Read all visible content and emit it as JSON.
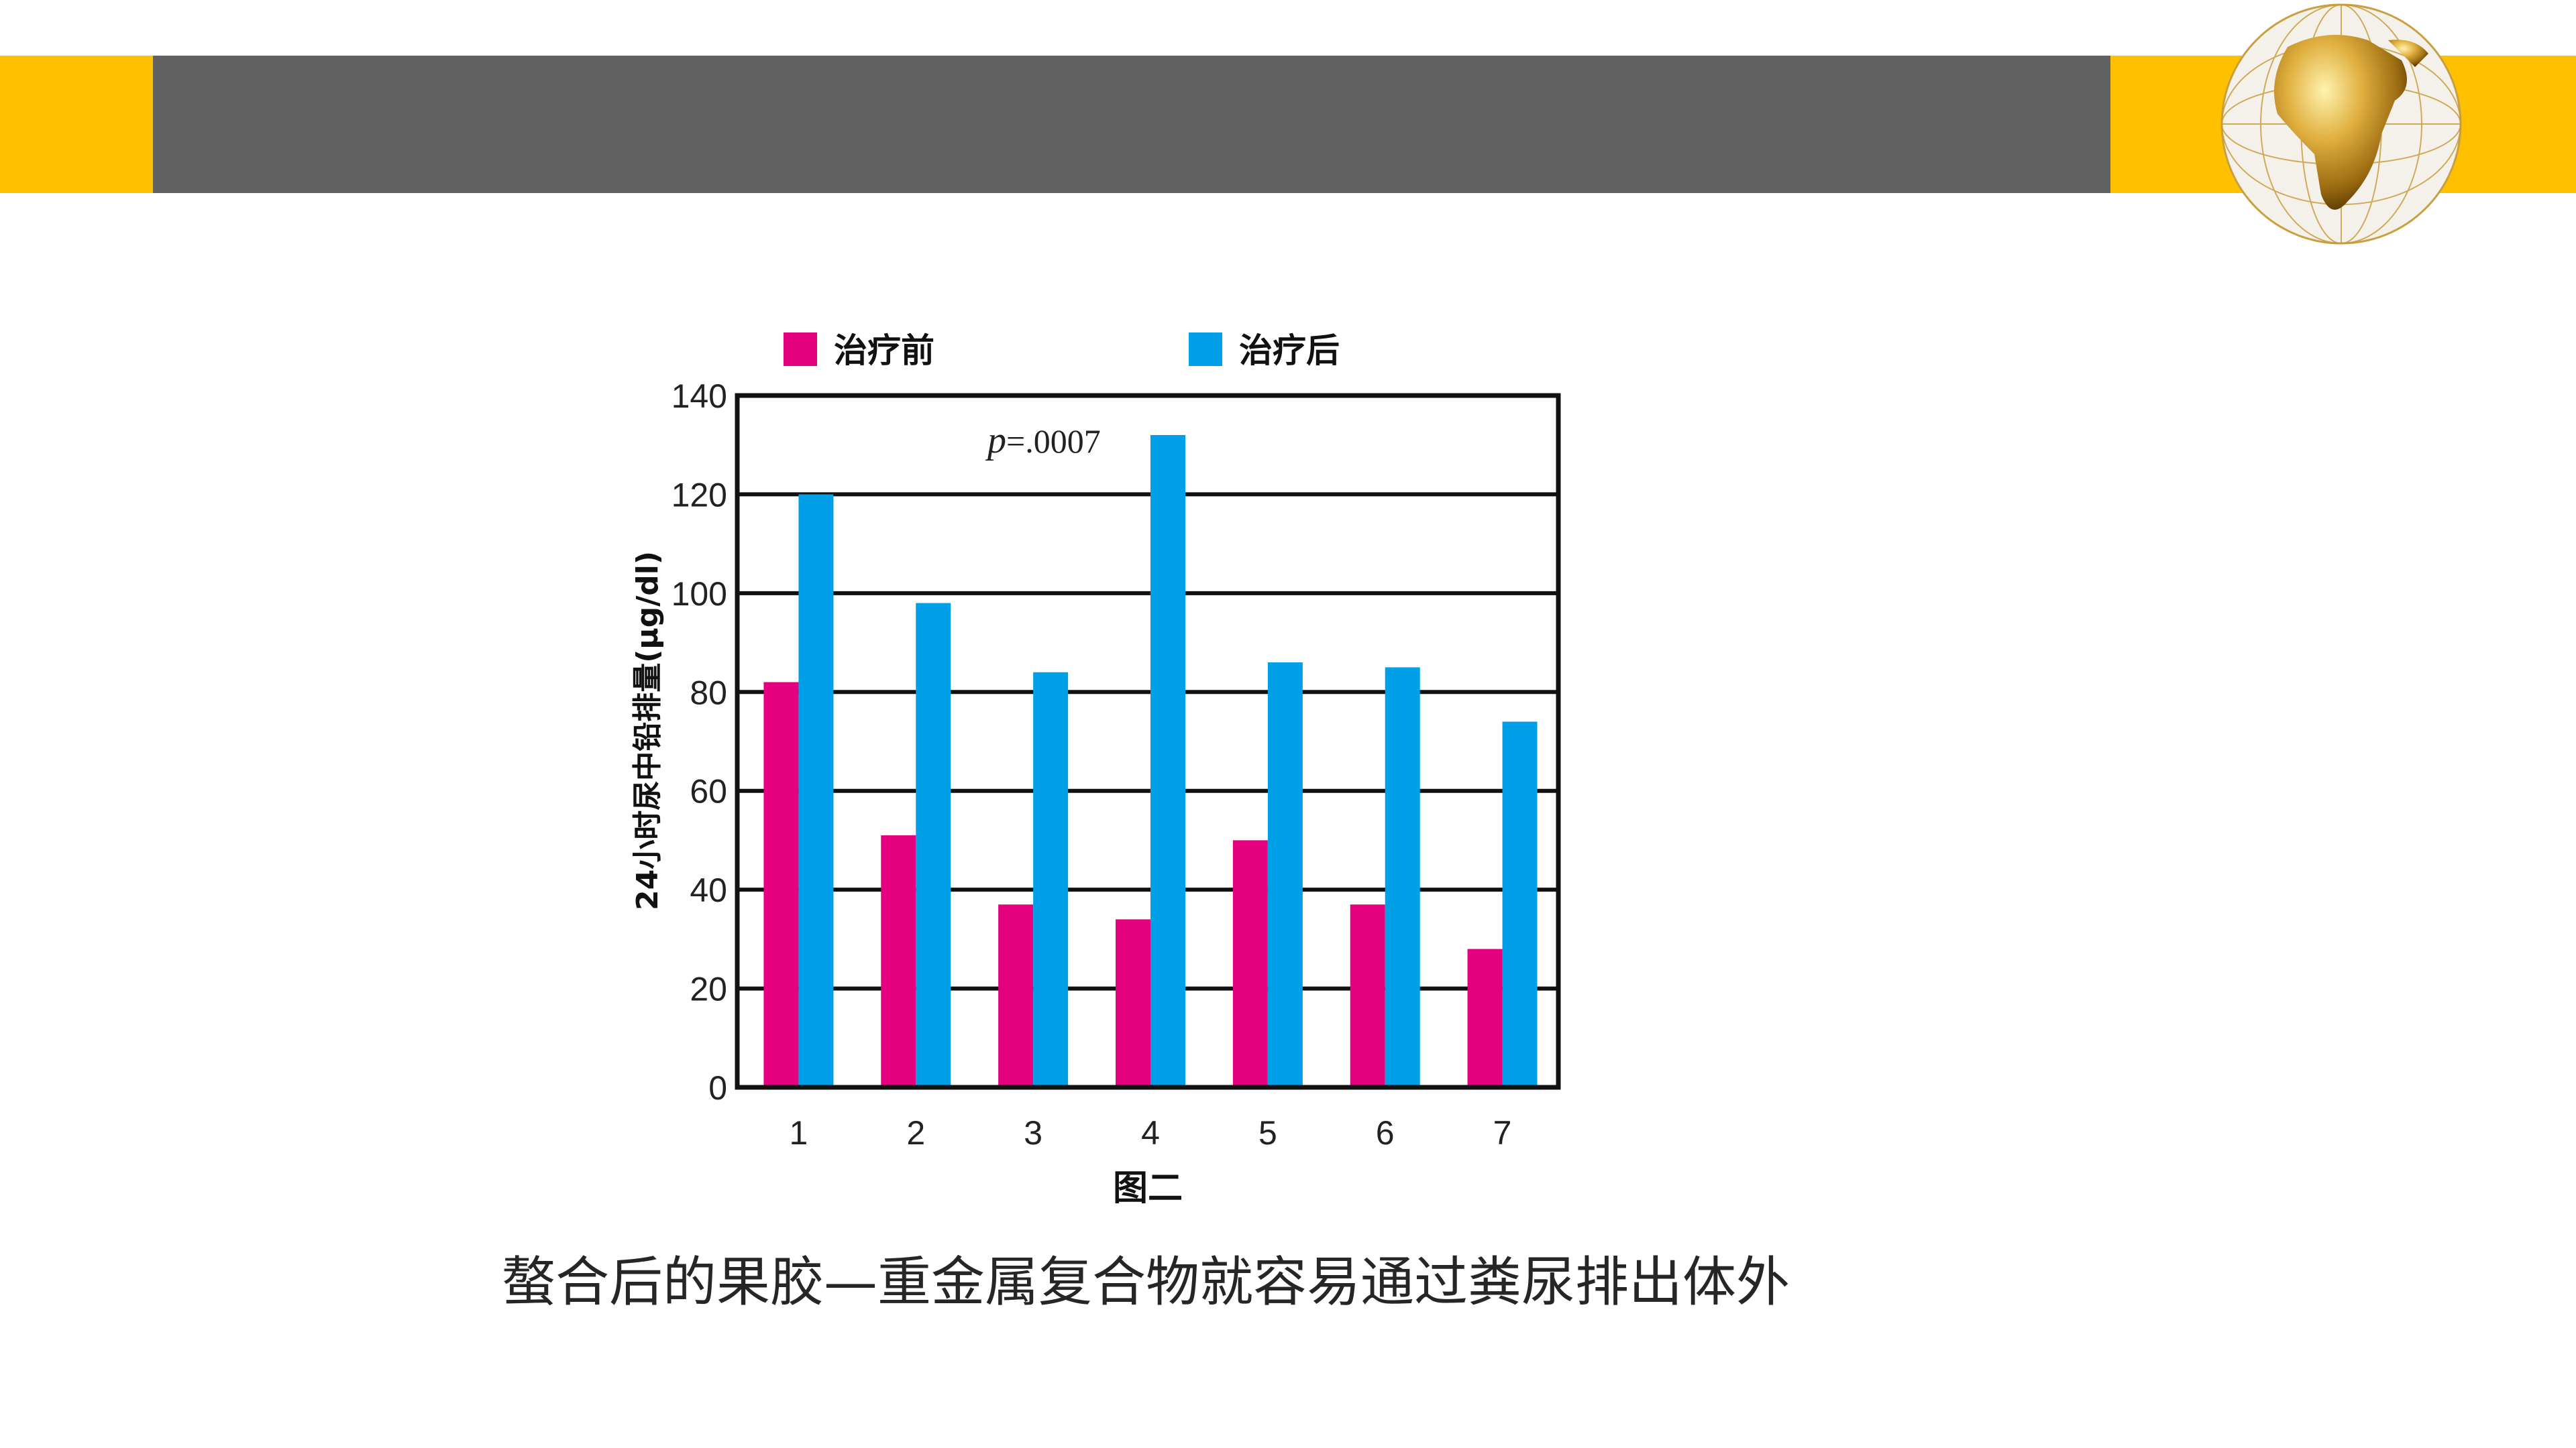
{
  "caption": "螯合后的果胶—重金属复合物就容易通过粪尿排出体外",
  "colors": {
    "band_accent": "#ffc000",
    "band_gray": "#616161",
    "before": "#e4007f",
    "after": "#00a0e9"
  },
  "logo": {
    "icon": "gold-globe-icon"
  },
  "chart_data": {
    "type": "bar",
    "title": "图二",
    "categories": [
      "1",
      "2",
      "3",
      "4",
      "5",
      "6",
      "7"
    ],
    "series": [
      {
        "name": "治疗前",
        "values": [
          82,
          51,
          37,
          34,
          50,
          37,
          28
        ]
      },
      {
        "name": "治疗后",
        "values": [
          120,
          98,
          84,
          132,
          86,
          85,
          74
        ]
      }
    ],
    "ylabel": "24小时尿中铅排量(μg/dl)",
    "xlabel": "",
    "ylim": [
      0,
      140
    ],
    "yticks": [
      0,
      20,
      40,
      60,
      80,
      100,
      120,
      140
    ],
    "grid": true,
    "legend": "top",
    "annotation": {
      "italic": "p",
      "rest": "=.0007"
    }
  }
}
